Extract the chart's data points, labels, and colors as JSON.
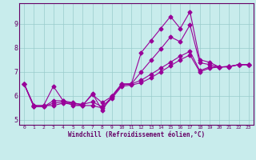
{
  "xlabel": "Windchill (Refroidissement éolien,°C)",
  "bg_color": "#c8ecec",
  "line_color": "#990099",
  "grid_color": "#99cccc",
  "axis_color": "#660066",
  "text_color": "#660066",
  "xlim": [
    -0.5,
    23.5
  ],
  "ylim": [
    4.8,
    9.85
  ],
  "xticks": [
    0,
    1,
    2,
    3,
    4,
    5,
    6,
    7,
    8,
    9,
    10,
    11,
    12,
    13,
    14,
    15,
    16,
    17,
    18,
    19,
    20,
    21,
    22,
    23
  ],
  "yticks": [
    5,
    6,
    7,
    8,
    9
  ],
  "series": [
    [
      6.5,
      5.6,
      5.6,
      6.4,
      5.8,
      5.6,
      5.6,
      6.1,
      5.4,
      6.0,
      6.5,
      6.5,
      7.8,
      8.3,
      8.8,
      9.3,
      8.8,
      9.5,
      7.5,
      7.4,
      7.2,
      7.2,
      7.3,
      7.3
    ],
    [
      6.5,
      5.6,
      5.6,
      5.6,
      5.7,
      5.65,
      5.6,
      5.6,
      5.5,
      5.9,
      6.4,
      6.45,
      6.55,
      6.75,
      7.0,
      7.25,
      7.5,
      7.7,
      7.0,
      7.15,
      7.2,
      7.22,
      7.3,
      7.3
    ],
    [
      6.5,
      5.55,
      5.55,
      5.7,
      5.75,
      5.7,
      5.65,
      5.75,
      5.55,
      5.95,
      6.45,
      6.5,
      6.65,
      6.9,
      7.15,
      7.4,
      7.65,
      7.85,
      7.05,
      7.2,
      7.2,
      7.22,
      7.3,
      7.3
    ],
    [
      6.5,
      5.55,
      5.55,
      5.8,
      5.8,
      5.72,
      5.62,
      6.05,
      5.72,
      5.98,
      6.48,
      6.5,
      7.0,
      7.48,
      7.95,
      8.45,
      8.25,
      8.95,
      7.38,
      7.3,
      7.2,
      7.22,
      7.3,
      7.3
    ]
  ],
  "marker": "D",
  "markersize": 2.5,
  "linewidth": 0.8
}
